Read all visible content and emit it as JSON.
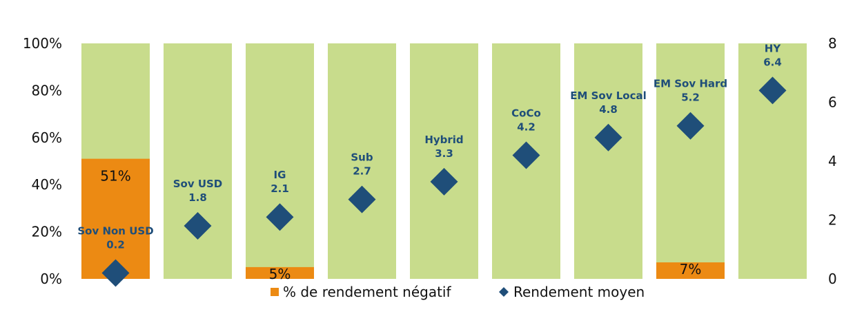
{
  "chart_data": {
    "type": "bar",
    "categories": [
      "Sov Non USD",
      "Sov USD",
      "IG",
      "Sub",
      "Hybrid",
      "CoCo",
      "EM Sov Local",
      "EM Sov Hard",
      "HY"
    ],
    "series": [
      {
        "name": "% de rendement négatif",
        "axis": "left",
        "values": [
          51,
          0,
          5,
          0,
          0,
          0,
          0,
          7,
          0
        ],
        "labels": [
          "51%",
          "",
          "5%",
          "",
          "",
          "",
          "",
          "7%",
          ""
        ]
      },
      {
        "name": "Rendement moyen",
        "axis": "right",
        "type": "scatter",
        "marker": "diamond",
        "values": [
          0.2,
          1.8,
          2.1,
          2.7,
          3.3,
          4.2,
          4.8,
          5.2,
          6.4
        ],
        "labels": [
          "0.2",
          "1.8",
          "2.1",
          "2.7",
          "3.3",
          "4.2",
          "4.8",
          "5.2",
          "6.4"
        ]
      }
    ],
    "y_left": {
      "ylim": [
        0,
        100
      ],
      "ticks": [
        "0%",
        "20%",
        "40%",
        "60%",
        "80%",
        "100%"
      ]
    },
    "y_right": {
      "ylim": [
        0,
        8
      ],
      "ticks": [
        "0",
        "2",
        "4",
        "6",
        "8"
      ]
    },
    "legend": {
      "position": "bottom",
      "items": [
        "% de rendement négatif",
        "Rendement moyen"
      ]
    },
    "colors": {
      "background_bar": "#c8dc8c",
      "negative": "#ec8a13",
      "diamond": "#1f4e79",
      "category_text": "#1f4e79"
    },
    "grid": false
  }
}
